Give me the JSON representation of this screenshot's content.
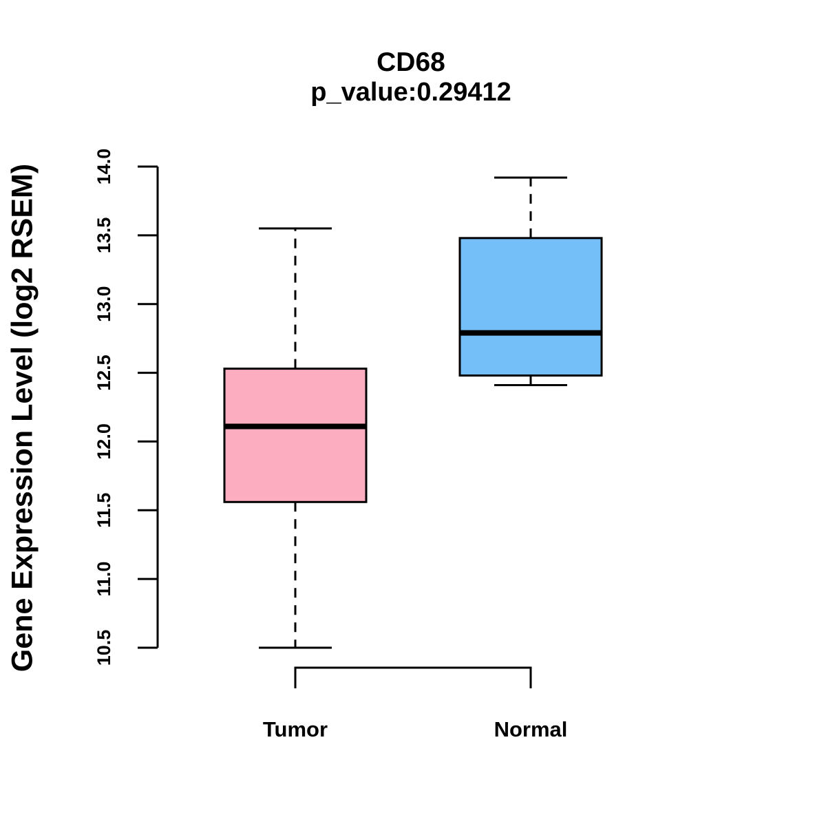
{
  "chart": {
    "title": "CD68",
    "subtitle": "p_value:0.29412",
    "ylabel": "Gene Expression Level (log2 RSEM)"
  },
  "chart_data": {
    "type": "boxplot",
    "title": "CD68",
    "subtitle": "p_value:0.29412",
    "p_value": 0.29412,
    "gene": "CD68",
    "ylabel": "Gene Expression Level (log2 RSEM)",
    "xlabel": "",
    "ylim": [
      10.5,
      14.0
    ],
    "yticks": [
      10.5,
      11.0,
      11.5,
      12.0,
      12.5,
      13.0,
      13.5,
      14.0
    ],
    "grid": false,
    "legend": "none",
    "categories": [
      "Tumor",
      "Normal"
    ],
    "series": [
      {
        "name": "Tumor",
        "color": "#FCADC0",
        "whisker_low": 10.5,
        "q1": 11.56,
        "median": 12.11,
        "q3": 12.53,
        "whisker_high": 13.55
      },
      {
        "name": "Normal",
        "color": "#74BFF7",
        "whisker_low": 12.41,
        "q1": 12.48,
        "median": 12.79,
        "q3": 13.48,
        "whisker_high": 13.92
      }
    ],
    "box_border_color": "#000000",
    "median_color": "#000000",
    "whisker_style": "dashed",
    "comparison_bracket": [
      "Tumor",
      "Normal"
    ]
  }
}
